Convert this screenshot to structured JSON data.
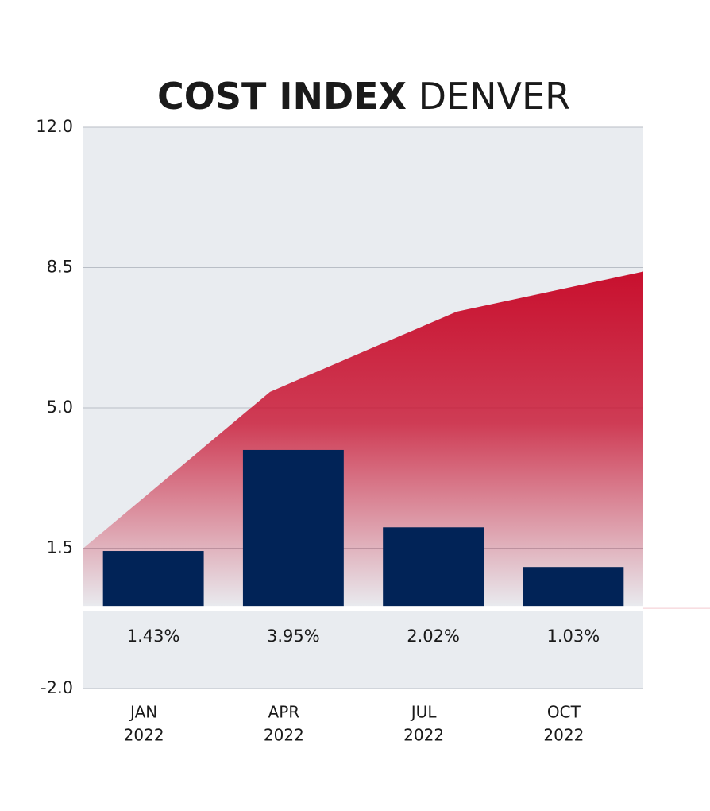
{
  "chart_data": {
    "type": "bar",
    "title": {
      "bold": "COST INDEX",
      "light": "DENVER"
    },
    "categories": [
      "JAN",
      "APR",
      "JUL",
      "OCT"
    ],
    "years": [
      "2022",
      "2022",
      "2022",
      "2022"
    ],
    "values": [
      1.43,
      3.95,
      2.02,
      1.03
    ],
    "value_labels": [
      "1.43%",
      "3.95%",
      "2.02%",
      "1.03%"
    ],
    "color": "#012357",
    "area": {
      "values": [
        1.5,
        5.4,
        7.4,
        8.4
      ],
      "color": "#c8102e"
    },
    "ylim": [
      -2,
      12
    ],
    "yticks": [
      {
        "value": 12,
        "label": "12.0"
      },
      8.5,
      {
        "value": 5,
        "label": "5.0"
      },
      1.5,
      {
        "value": -2,
        "label": "-2.0"
      }
    ],
    "grid": true
  }
}
